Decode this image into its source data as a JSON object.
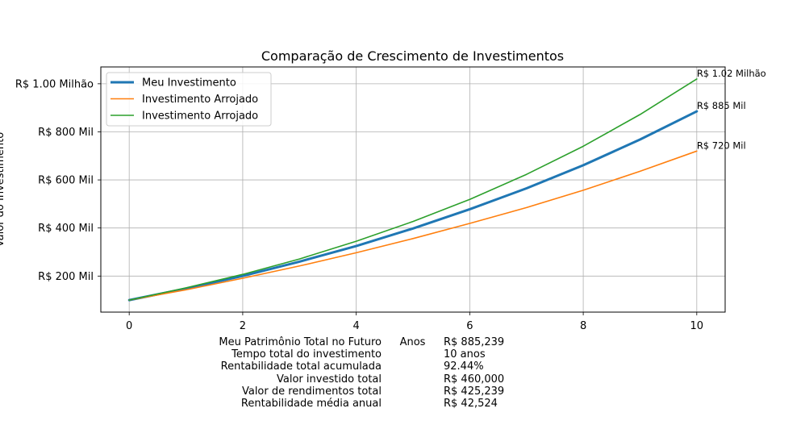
{
  "chart_data": {
    "type": "line",
    "title": "Comparação de Crescimento de Investimentos",
    "xlabel": "Anos",
    "ylabel": "Valor do Investimento",
    "xlim": [
      -0.5,
      10.5
    ],
    "ylim": [
      50000,
      1070000
    ],
    "x_ticks": [
      0,
      2,
      4,
      6,
      8,
      10
    ],
    "y_ticks": [
      {
        "value": 200000,
        "label": "R$ 200 Mil"
      },
      {
        "value": 400000,
        "label": "R$ 400 Mil"
      },
      {
        "value": 600000,
        "label": "R$ 600 Mil"
      },
      {
        "value": 800000,
        "label": "R$ 800 Mil"
      },
      {
        "value": 1000000,
        "label": "R$ 1.00 Milhão"
      }
    ],
    "grid": true,
    "legend_position": "top-left",
    "x": [
      0,
      1,
      2,
      3,
      4,
      5,
      6,
      7,
      8,
      9,
      10
    ],
    "series": [
      {
        "name": "Meu Investimento",
        "color": "#1f77b4",
        "bold": true,
        "values": [
          100000,
          148000,
          200500,
          260000,
          325000,
          398000,
          478000,
          565000,
          661000,
          768000,
          885239
        ],
        "end_label": "R$ 885 Mil"
      },
      {
        "name": "Investimento Arrojado",
        "color": "#ff7f0e",
        "bold": false,
        "values": [
          100000,
          143000,
          191000,
          242000,
          297000,
          356000,
          419000,
          485000,
          557000,
          636000,
          720000
        ],
        "end_label": "R$ 720 Mil"
      },
      {
        "name": "Investimento Arrojado",
        "color": "#2ca02c",
        "bold": false,
        "values": [
          100000,
          151000,
          207000,
          271000,
          345000,
          427000,
          519000,
          623000,
          740000,
          872000,
          1020000
        ],
        "end_label": "R$ 1.02 Milhão"
      }
    ]
  },
  "summary": {
    "rows": [
      {
        "label": "Meu Patrimônio Total no Futuro",
        "value": "R$ 885,239"
      },
      {
        "label": "Tempo total do investimento",
        "value": "10 anos"
      },
      {
        "label": "Rentabilidade total acumulada",
        "value": "92.44%"
      },
      {
        "label": "Valor investido total",
        "value": "R$ 460,000"
      },
      {
        "label": "Valor de rendimentos total",
        "value": "R$ 425,239"
      },
      {
        "label": "Rentabilidade média anual",
        "value": "R$ 42,524"
      }
    ]
  }
}
